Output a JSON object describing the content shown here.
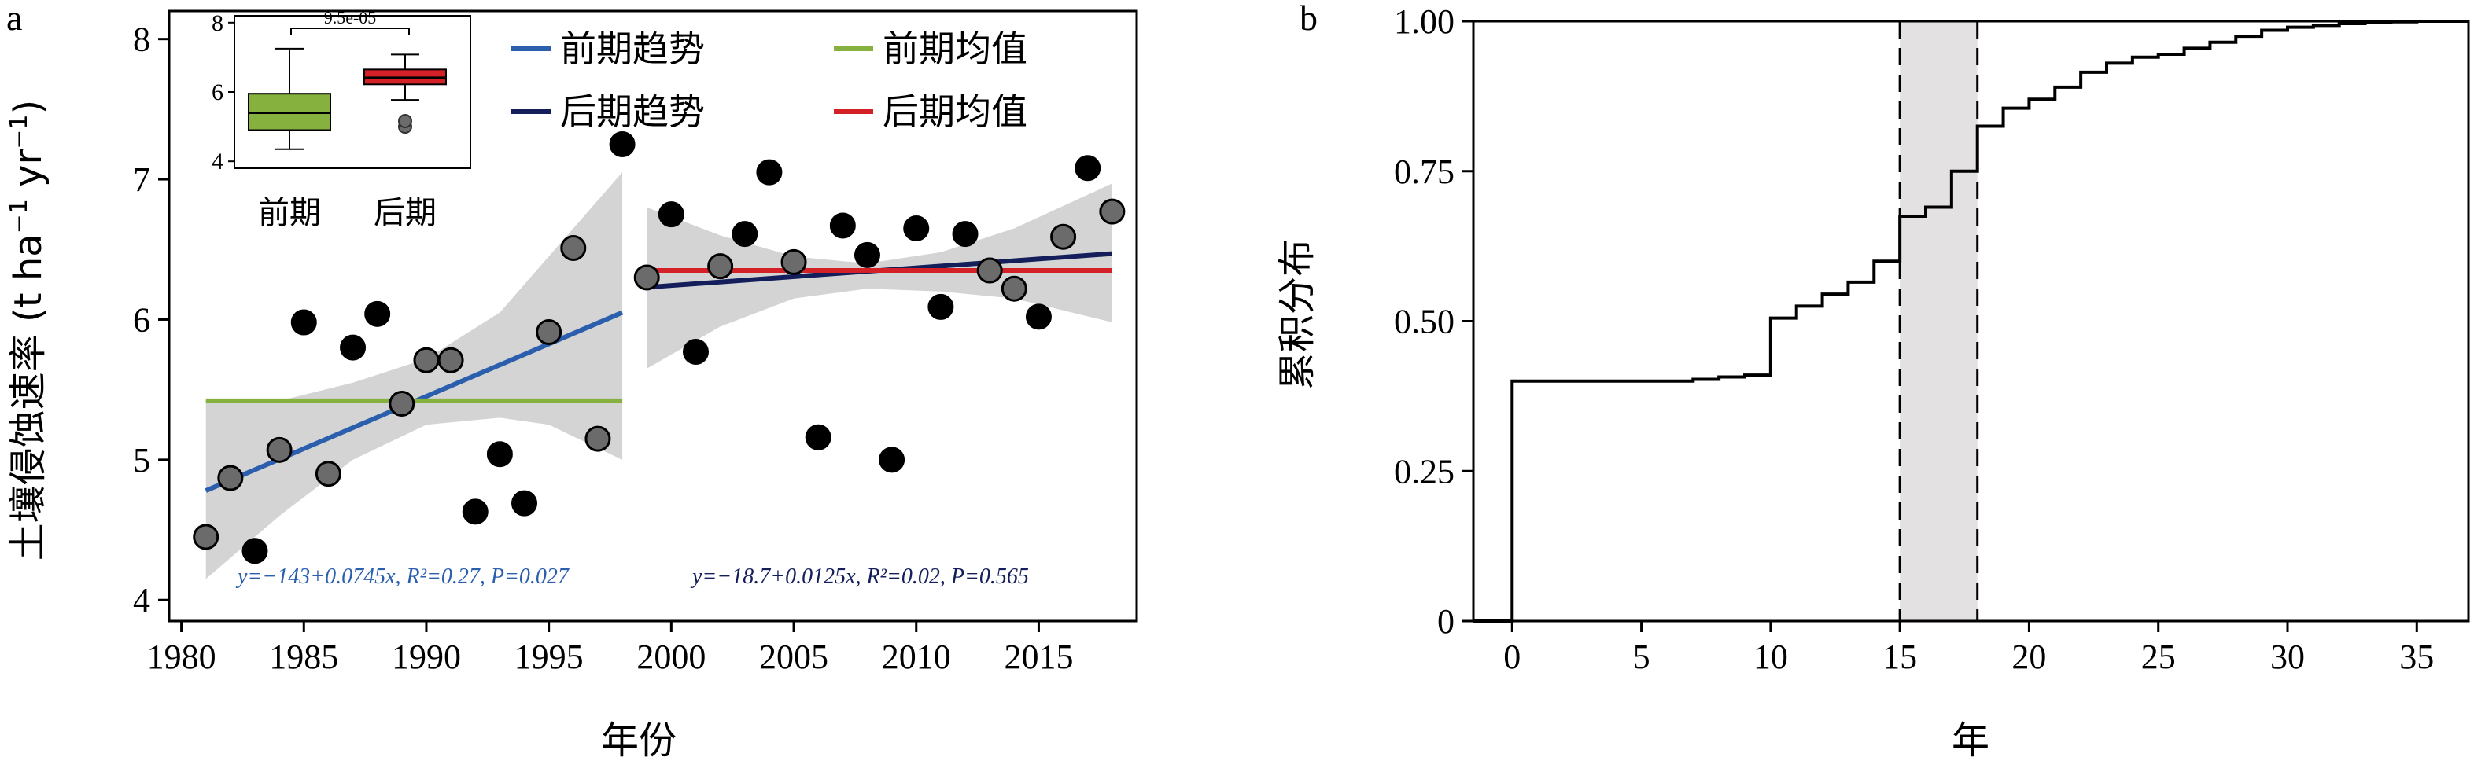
{
  "chart_data": [
    {
      "panel": "a",
      "type": "scatter",
      "xlabel": "年份",
      "ylabel": "土壤侵蚀速率 (t ha⁻¹ yr⁻¹)",
      "ylabel_main": "土壤侵蚀速率 (t ha",
      "ylabel_sup1": "−1",
      "ylabel_mid": " yr",
      "ylabel_sup2": "−1",
      "ylabel_end": ")",
      "xlim": [
        1979.5,
        2019
      ],
      "ylim": [
        3.85,
        8.2
      ],
      "xticks": [
        1980,
        1985,
        1990,
        1995,
        2000,
        2005,
        2010,
        2015
      ],
      "yticks": [
        4,
        5,
        6,
        7,
        8
      ],
      "points_early": [
        {
          "x": 1981,
          "y": 4.45
        },
        {
          "x": 1982,
          "y": 4.87
        },
        {
          "x": 1983,
          "y": 4.35
        },
        {
          "x": 1984,
          "y": 5.07
        },
        {
          "x": 1985,
          "y": 5.98
        },
        {
          "x": 1986,
          "y": 4.9
        },
        {
          "x": 1987,
          "y": 5.8
        },
        {
          "x": 1988,
          "y": 6.04
        },
        {
          "x": 1989,
          "y": 5.4
        },
        {
          "x": 1990,
          "y": 5.71
        },
        {
          "x": 1991,
          "y": 5.71
        },
        {
          "x": 1992,
          "y": 4.63
        },
        {
          "x": 1993,
          "y": 5.04
        },
        {
          "x": 1994,
          "y": 4.69
        },
        {
          "x": 1995,
          "y": 5.91
        },
        {
          "x": 1996,
          "y": 6.51
        },
        {
          "x": 1997,
          "y": 5.15
        },
        {
          "x": 1998,
          "y": 7.25
        }
      ],
      "points_late": [
        {
          "x": 1999,
          "y": 6.3
        },
        {
          "x": 2000,
          "y": 6.75
        },
        {
          "x": 2001,
          "y": 5.77
        },
        {
          "x": 2002,
          "y": 6.38
        },
        {
          "x": 2003,
          "y": 6.61
        },
        {
          "x": 2004,
          "y": 7.05
        },
        {
          "x": 2005,
          "y": 6.41
        },
        {
          "x": 2006,
          "y": 5.16
        },
        {
          "x": 2007,
          "y": 6.67
        },
        {
          "x": 2008,
          "y": 6.46
        },
        {
          "x": 2009,
          "y": 5.0
        },
        {
          "x": 2010,
          "y": 6.65
        },
        {
          "x": 2011,
          "y": 6.09
        },
        {
          "x": 2012,
          "y": 6.61
        },
        {
          "x": 2013,
          "y": 6.35
        },
        {
          "x": 2014,
          "y": 6.22
        },
        {
          "x": 2015,
          "y": 6.02
        },
        {
          "x": 2016,
          "y": 6.59
        },
        {
          "x": 2017,
          "y": 7.08
        },
        {
          "x": 2018,
          "y": 6.77
        }
      ],
      "series": [
        {
          "name": "前期趋势",
          "color": "#2b5fad",
          "x": [
            1981,
            1998
          ],
          "y": [
            4.78,
            6.05
          ]
        },
        {
          "name": "前期均值",
          "color": "#86b13f",
          "x": [
            1981,
            1998
          ],
          "y": [
            5.42,
            5.42
          ]
        },
        {
          "name": "后期趋势",
          "color": "#141e5a",
          "x": [
            1999,
            2018
          ],
          "y": [
            6.23,
            6.47
          ]
        },
        {
          "name": "后期均值",
          "color": "#d42027",
          "x": [
            1999,
            2018
          ],
          "y": [
            6.35,
            6.35
          ]
        }
      ],
      "band_early": {
        "x": [
          1981,
          1984,
          1987,
          1990,
          1993,
          1995,
          1998
        ],
        "lower": [
          4.15,
          4.6,
          5.0,
          5.25,
          5.3,
          5.25,
          5.0
        ],
        "upper": [
          5.42,
          5.42,
          5.55,
          5.72,
          6.05,
          6.45,
          7.05
        ]
      },
      "band_late": {
        "x": [
          1999,
          2002,
          2005,
          2008,
          2011,
          2014,
          2018
        ],
        "lower": [
          5.65,
          5.95,
          6.15,
          6.22,
          6.2,
          6.15,
          5.98
        ],
        "upper": [
          6.8,
          6.6,
          6.45,
          6.4,
          6.48,
          6.65,
          6.97
        ]
      },
      "equations": [
        {
          "text": "y=−143+0.0745x, R²=0.27, P=0.027",
          "color": "#2b5fad"
        },
        {
          "text": "y=−18.7+0.0125x, R²=0.02, P=0.565",
          "color": "#141e5a"
        }
      ],
      "inset": {
        "type": "boxplot",
        "categories": [
          "前期",
          "后期"
        ],
        "ylim": [
          3.8,
          8.2
        ],
        "yticks": [
          4,
          6,
          8
        ],
        "p_value": "9.5e-05",
        "boxes": [
          {
            "name": "前期",
            "color": "#86b13f",
            "min": 4.35,
            "q1": 4.9,
            "median": 5.4,
            "q3": 5.95,
            "max": 7.25,
            "outliers": []
          },
          {
            "name": "后期",
            "color": "#d42027",
            "min": 5.77,
            "q1": 6.22,
            "median": 6.41,
            "q3": 6.65,
            "max": 7.08,
            "outliers": [
              5.0,
              5.16
            ]
          }
        ]
      }
    },
    {
      "panel": "b",
      "type": "line",
      "subtype": "step-ecdf",
      "xlabel": "年",
      "ylabel": "累积分布",
      "xlim": [
        -1.5,
        37
      ],
      "ylim": [
        0,
        1.0
      ],
      "xticks": [
        0,
        5,
        10,
        15,
        20,
        25,
        30,
        35
      ],
      "yticks": [
        "0",
        "0.25",
        "0.50",
        "0.75",
        "1.00"
      ],
      "ytick_values": [
        0,
        0.25,
        0.5,
        0.75,
        1.0
      ],
      "highlight_range": [
        15,
        18
      ],
      "steps": {
        "x": [
          -1.5,
          0,
          1,
          2,
          3,
          4,
          5,
          6,
          7,
          8,
          9,
          10,
          11,
          12,
          13,
          14,
          15,
          16,
          17,
          18,
          19,
          20,
          21,
          22,
          23,
          24,
          25,
          26,
          27,
          28,
          29,
          30,
          31,
          32,
          33,
          34,
          35,
          36,
          37
        ],
        "y": [
          0,
          0.4,
          0.4,
          0.4,
          0.4,
          0.4,
          0.4,
          0.4,
          0.403,
          0.407,
          0.41,
          0.505,
          0.525,
          0.545,
          0.565,
          0.6,
          0.675,
          0.69,
          0.75,
          0.825,
          0.855,
          0.87,
          0.89,
          0.915,
          0.93,
          0.94,
          0.945,
          0.955,
          0.965,
          0.975,
          0.985,
          0.99,
          0.993,
          0.996,
          0.998,
          0.999,
          1.0,
          1.0,
          1.0
        ]
      }
    }
  ]
}
